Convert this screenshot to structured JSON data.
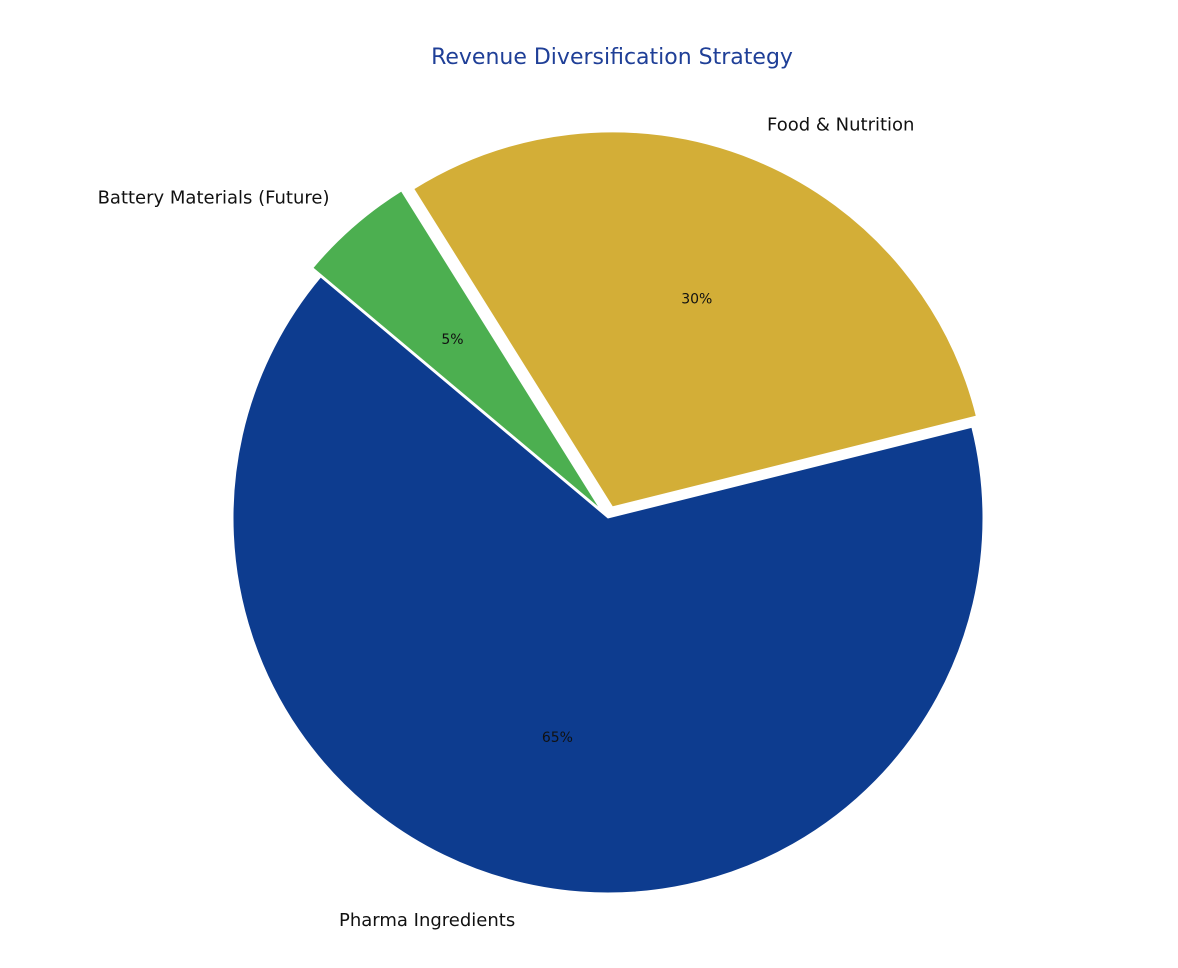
{
  "chart_data": {
    "type": "pie",
    "title": "Revenue Diversification Strategy",
    "slices": [
      {
        "label": "Pharma Ingredients",
        "value": 65,
        "value_label": "65%",
        "color": "#0d3c8f",
        "exploded": false
      },
      {
        "label": "Food & Nutrition",
        "value": 30,
        "value_label": "30%",
        "color": "#d3ae37",
        "exploded": true
      },
      {
        "label": "Battery Materials (Future)",
        "value": 5,
        "value_label": "5%",
        "color": "#4caf50",
        "exploded": true
      }
    ],
    "legend": "none"
  }
}
